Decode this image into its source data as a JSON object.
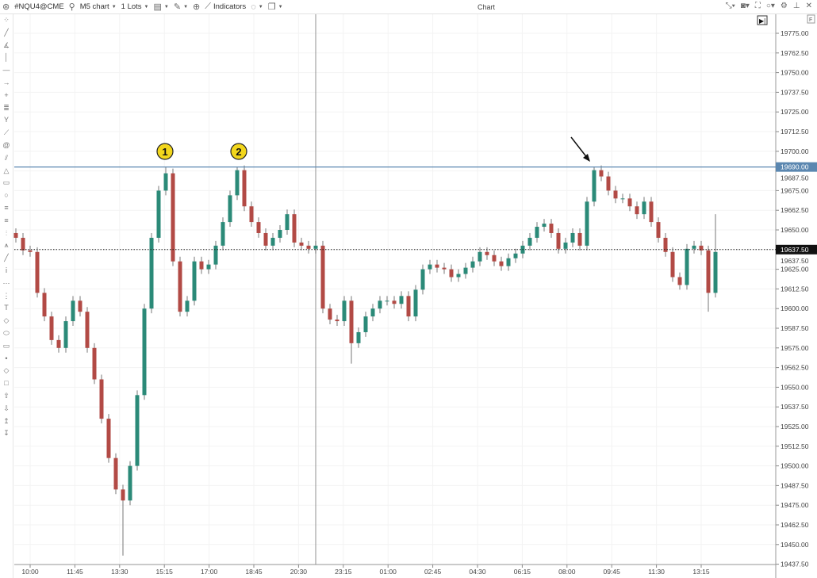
{
  "toolbar": {
    "symbol": "#NQU4@CME",
    "timeframe": "M5 chart",
    "lots": "1 Lots",
    "indicators": "Indicators",
    "title": "Chart"
  },
  "left_tools": [
    "cursor",
    "trend-line",
    "angle",
    "vertical-line",
    "horizontal-line",
    "arrow",
    "cross",
    "fib-levels",
    "pitchfork",
    "fan",
    "spiral",
    "parallel-channel",
    "triangle",
    "rectangle",
    "ellipse",
    "fib-retracement",
    "fib-extension",
    "fib-time",
    "elliott-wave",
    "zigzag",
    "pattern",
    "range",
    "date-range",
    "text",
    "tag",
    "callout",
    "note",
    "dot",
    "diamond",
    "square",
    "arrow-up",
    "arrow-down",
    "buy-arrow",
    "sell-arrow"
  ],
  "price_axis": {
    "labels": [
      "19775.00",
      "19762.50",
      "19750.00",
      "19737.50",
      "19725.00",
      "19712.50",
      "19700.00",
      "19687.50",
      "19675.00",
      "19662.50",
      "19650.00",
      "19637.50",
      "19625.00",
      "19612.50",
      "19600.00",
      "19587.50",
      "19575.00",
      "19562.50",
      "19550.00",
      "19537.50",
      "19525.00",
      "19512.50",
      "19500.00",
      "19487.50",
      "19475.00",
      "19462.50",
      "19450.00",
      "19437.50"
    ],
    "level_line": "19690.00",
    "current_price": "19637.50"
  },
  "time_axis": [
    "10:00",
    "11:45",
    "13:30",
    "15:15",
    "17:00",
    "18:45",
    "20:30",
    "23:15",
    "01:00",
    "02:45",
    "04:30",
    "06:15",
    "08:00",
    "09:45",
    "11:30",
    "13:15"
  ],
  "annotations": {
    "marker1": "1",
    "marker2": "2"
  },
  "colors": {
    "up": "#2b8a78",
    "down": "#b24a45",
    "level": "#5b87b0",
    "marker": "#f2d61c"
  },
  "chart_data": {
    "type": "candlestick",
    "closes": [
      19645,
      19637,
      19636,
      19610,
      19595,
      19580,
      19575,
      19592,
      19605,
      19598,
      19575,
      19555,
      19530,
      19505,
      19485,
      19478,
      19500,
      19545,
      19600,
      19645,
      19675,
      19686,
      19630,
      19598,
      19605,
      19630,
      19625,
      19628,
      19640,
      19655,
      19672,
      19688,
      19665,
      19655,
      19648,
      19640,
      19645,
      19650,
      19660,
      19642,
      19640,
      19638,
      19640,
      19600,
      19593,
      19592,
      19605,
      19578,
      19585,
      19595,
      19600,
      19605,
      19605,
      19603,
      19608,
      19595,
      19612,
      19625,
      19628,
      19626,
      19625,
      19620,
      19622,
      19626,
      19630,
      19636,
      19634,
      19630,
      19627,
      19632,
      19635,
      19640,
      19645,
      19652,
      19654,
      19648,
      19638,
      19642,
      19648,
      19640,
      19668,
      19688,
      19684,
      19675,
      19670,
      19670,
      19665,
      19660,
      19668,
      19655,
      19645,
      19636,
      19620,
      19615,
      19638,
      19640,
      19637,
      19610,
      19636
    ],
    "wick_overrides": {
      "15": {
        "low": 19443
      },
      "47": {
        "low": 19565
      },
      "97": {
        "low": 19598
      },
      "98": {
        "high": 19660
      },
      "21": {
        "high": 19690
      },
      "31": {
        "high": 19690
      },
      "81": {
        "high": 19690
      }
    },
    "ylim": [
      19437.5,
      19787.5
    ]
  }
}
